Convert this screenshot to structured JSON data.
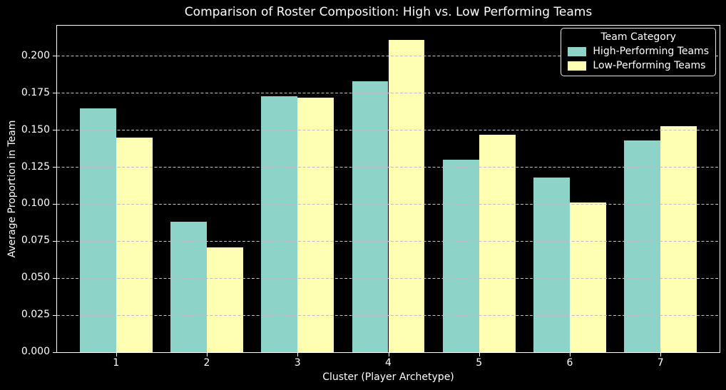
{
  "chart_data": {
    "type": "bar",
    "title": "Comparison of Roster Composition: High vs. Low Performing Teams",
    "xlabel": "Cluster (Player Archetype)",
    "ylabel": "Average Proportion in Team",
    "categories": [
      "1",
      "2",
      "3",
      "4",
      "5",
      "6",
      "7"
    ],
    "series": [
      {
        "name": "High-Performing Teams",
        "color": "#8dd3c7",
        "values": [
          0.165,
          0.088,
          0.173,
          0.183,
          0.13,
          0.118,
          0.143
        ]
      },
      {
        "name": "Low-Performing Teams",
        "color": "#feffb3",
        "values": [
          0.145,
          0.071,
          0.172,
          0.211,
          0.147,
          0.101,
          0.153
        ]
      }
    ],
    "legend": {
      "title": "Team Category",
      "position": "upper-right"
    },
    "y_ticks": [
      0.0,
      0.025,
      0.05,
      0.075,
      0.1,
      0.125,
      0.15,
      0.175,
      0.2
    ],
    "y_tick_decimals": 3,
    "ylim": [
      0,
      0.2207
    ],
    "xlim": [
      0.35,
      7.65
    ],
    "bar_width_units": 0.4,
    "grid": {
      "axis": "y",
      "linestyle": "dashed",
      "color": "#bfbfbf"
    },
    "colors": {
      "background": "#000000",
      "text": "#ffffff",
      "spine": "#ffffff"
    }
  }
}
